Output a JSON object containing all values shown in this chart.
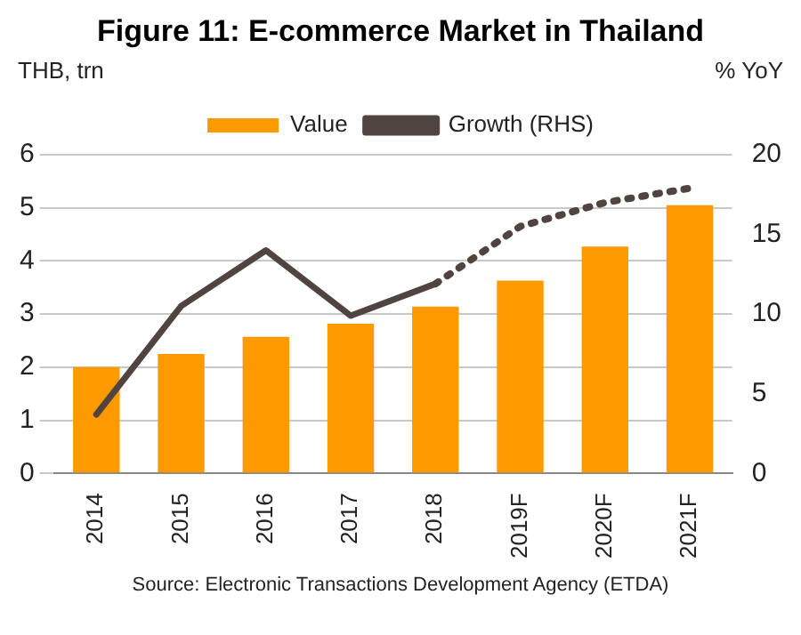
{
  "chart_data": {
    "type": "bar",
    "title": "Figure 11: E-commerce Market in Thailand",
    "ylabel": "THB, trn",
    "y2label": "% YoY",
    "categories": [
      "2014",
      "2015",
      "2016",
      "2017",
      "2018",
      "2019F",
      "2020F",
      "2021F"
    ],
    "series": [
      {
        "name": "Value",
        "color": "#ff9900",
        "values": [
          2.0,
          2.25,
          2.57,
          2.82,
          3.14,
          3.63,
          4.27,
          5.05
        ]
      },
      {
        "name": "Growth (RHS)",
        "type": "line",
        "axis": "y2",
        "color": "#504441",
        "line_style": "solid",
        "values": [
          3.7,
          10.5,
          14.0,
          9.9,
          11.9,
          null,
          null,
          null
        ]
      },
      {
        "type": "line",
        "axis": "y2",
        "color": "#504441",
        "line_style": "dotted",
        "values": [
          null,
          null,
          null,
          null,
          11.9,
          15.5,
          17.0,
          17.9
        ]
      }
    ],
    "ylim": [
      0,
      6
    ],
    "yticks": [
      0,
      1,
      2,
      3,
      4,
      5,
      6
    ],
    "y2lim": [
      0,
      20
    ],
    "y2ticks": [
      0,
      5,
      10,
      15,
      20
    ],
    "grid": "y",
    "legend": "top",
    "marker": "none",
    "annotations": [
      "Source: Electronic Transactions Development Agency (ETDA)"
    ]
  }
}
